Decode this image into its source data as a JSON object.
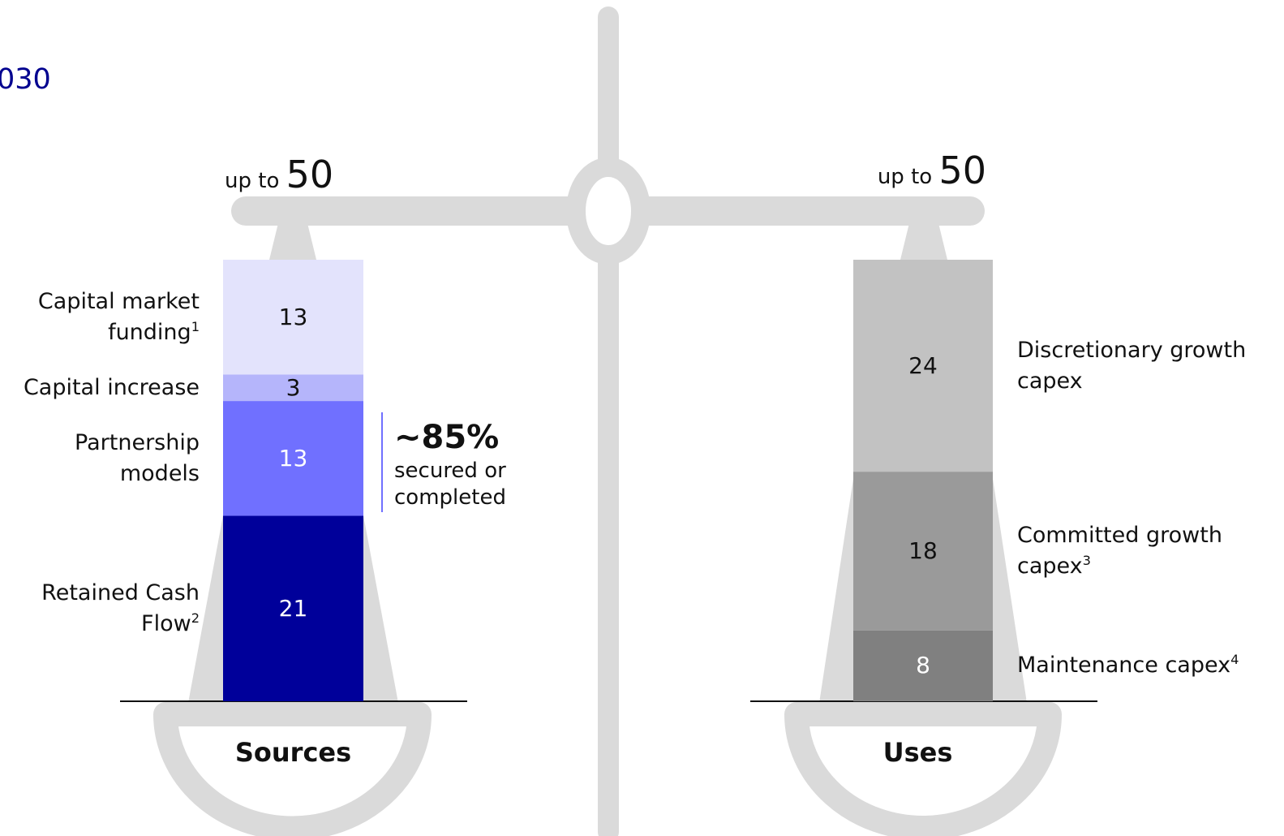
{
  "title_fragment": "030",
  "chart_data": {
    "type": "stacked-bar",
    "charts": [
      {
        "category": "Sources",
        "total_prefix": "up to",
        "total": 50,
        "segments": [
          {
            "label": "Retained Cash Flow",
            "footnote": "2",
            "value": 21,
            "color": "#00009a",
            "text_color": "#ffffff"
          },
          {
            "label": "Partnership models",
            "footnote": "",
            "value": 13,
            "color": "#7070ff",
            "text_color": "#ffffff"
          },
          {
            "label": "Capital increase",
            "footnote": "",
            "value": 3,
            "color": "#b5b5fb",
            "text_color": "#111111"
          },
          {
            "label": "Capital market funding",
            "footnote": "1",
            "value": 13,
            "color": "#e3e3fc",
            "text_color": "#111111"
          }
        ]
      },
      {
        "category": "Uses",
        "total_prefix": "up to",
        "total": 50,
        "segments": [
          {
            "label": "Maintenance capex",
            "footnote": "4",
            "value": 8,
            "color": "#808080",
            "text_color": "#ffffff"
          },
          {
            "label": "Committed growth capex",
            "footnote": "3",
            "value": 18,
            "color": "#9a9a9a",
            "text_color": "#111111"
          },
          {
            "label": "Discretionary growth capex",
            "footnote": "",
            "value": 24,
            "color": "#c2c2c2",
            "text_color": "#111111"
          }
        ]
      }
    ],
    "annotation": {
      "value": "~85%",
      "text_line1": "secured or",
      "text_line2": "completed",
      "color": "#7070ff"
    }
  },
  "icons": [
    "balance-scale-icon"
  ],
  "colors": {
    "scale": "#dadada",
    "title": "#00008f"
  }
}
